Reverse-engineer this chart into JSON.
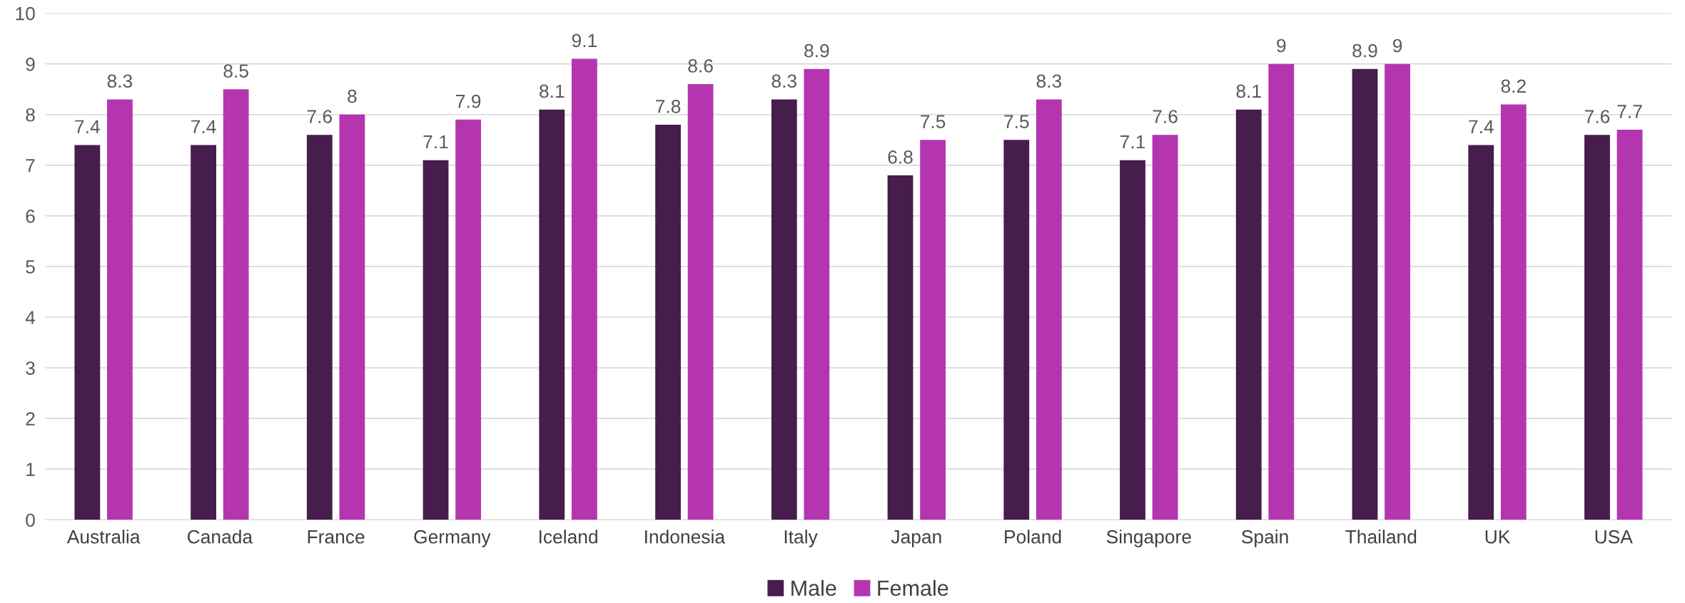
{
  "chart_data": {
    "type": "bar",
    "categories": [
      "Australia",
      "Canada",
      "France",
      "Germany",
      "Iceland",
      "Indonesia",
      "Italy",
      "Japan",
      "Poland",
      "Singapore",
      "Spain",
      "Thailand",
      "UK",
      "USA"
    ],
    "series": [
      {
        "name": "Male",
        "color": "#461d4c",
        "values": [
          7.4,
          7.4,
          7.6,
          7.1,
          8.1,
          7.8,
          8.3,
          6.8,
          7.5,
          7.1,
          8.1,
          8.9,
          7.4,
          7.6
        ]
      },
      {
        "name": "Female",
        "color": "#b535b0",
        "values": [
          8.3,
          8.5,
          8,
          7.9,
          9.1,
          8.6,
          8.9,
          7.5,
          8.3,
          7.6,
          9,
          9,
          8.2,
          7.7
        ]
      }
    ],
    "ylim": [
      0,
      10
    ],
    "yticks": [
      0,
      1,
      2,
      3,
      4,
      5,
      6,
      7,
      8,
      9,
      10
    ],
    "grid": "y",
    "legend": "bottom",
    "data_labels": true
  }
}
